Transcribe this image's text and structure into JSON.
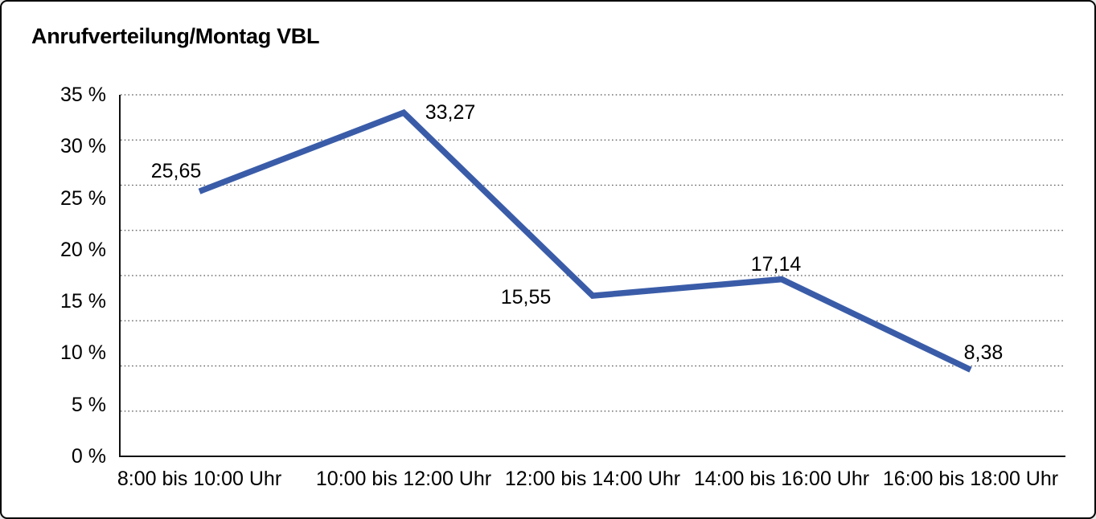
{
  "window": {
    "background_color": "#ffffff",
    "border_color": "#000000"
  },
  "chart_data": {
    "type": "line",
    "title": "Anrufverteilung/Montag VBL",
    "categories": [
      "8:00 bis 10:00 Uhr",
      "10:00 bis 12:00 Uhr",
      "12:00 bis 14:00 Uhr",
      "14:00 bis 16:00 Uhr",
      "16:00 bis 18:00 Uhr"
    ],
    "values": [
      25.65,
      33.27,
      15.55,
      17.14,
      8.38
    ],
    "point_labels": [
      "25,65",
      "33,27",
      "15,55",
      "17,14",
      "8,38"
    ],
    "y_ticks": [
      {
        "label": "0 %",
        "value": 0
      },
      {
        "label": "5 %",
        "value": 5
      },
      {
        "label": "10 %",
        "value": 10
      },
      {
        "label": "15 %",
        "value": 15
      },
      {
        "label": "20 %",
        "value": 20
      },
      {
        "label": "25 %",
        "value": 25
      },
      {
        "label": "30 %",
        "value": 30
      },
      {
        "label": "35 %",
        "value": 35
      }
    ],
    "ylim": [
      0,
      35
    ],
    "xlabel": "",
    "ylabel": "",
    "grid": "horizontal-dotted, 8 equal divisions",
    "legend": "none",
    "line_color": "#3A5CA8",
    "axis_color": "#111111",
    "gridline_color": "#555555",
    "text_color": "#000000"
  }
}
